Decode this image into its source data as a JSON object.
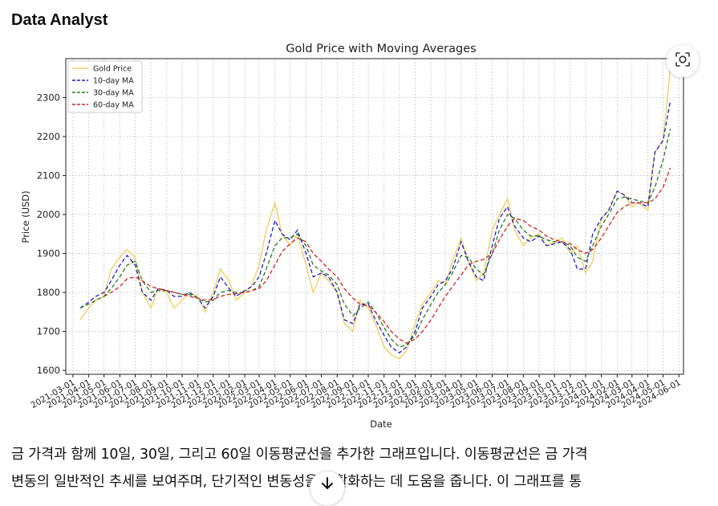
{
  "header": {
    "title": "Data Analyst"
  },
  "message": {
    "line1": "금 가격과 함께 10일, 30일, 그리고 60일 이동평균선을 추가한 그래프입니다. 이동평균선은 금 가격",
    "line2": "변동의 일반적인 추세를 보여주며, 단기적인 변동성을 평활화하는 데 도움을 줍니다. 이 그래프를 통"
  },
  "icons": {
    "lens": "image-lens-icon",
    "scroll": "arrow-down-icon"
  },
  "colors": {
    "gold": "#f0d060",
    "ma10": "#1c1cd6",
    "ma30": "#2a7a1e",
    "ma60": "#d62020"
  },
  "chart_data": {
    "type": "line",
    "title": "Gold Price with Moving Averages",
    "xlabel": "Date",
    "ylabel": "Price (USD)",
    "ylim": [
      1590,
      2400
    ],
    "yticks": [
      1600,
      1700,
      1800,
      1900,
      2000,
      2100,
      2200,
      2300
    ],
    "grid": true,
    "legend_position": "top-left",
    "x_tick_labels": [
      "2021-03-01",
      "2021-04-01",
      "2021-05-01",
      "2021-06-01",
      "2021-07-01",
      "2021-08-01",
      "2021-09-01",
      "2021-10-01",
      "2021-11-01",
      "2021-12-01",
      "2022-01-01",
      "2022-02-01",
      "2022-03-01",
      "2022-04-01",
      "2022-05-01",
      "2022-06-01",
      "2022-07-01",
      "2022-08-01",
      "2022-09-01",
      "2022-10-01",
      "2022-11-01",
      "2022-12-01",
      "2023-01-01",
      "2023-02-01",
      "2023-03-01",
      "2023-04-01",
      "2023-05-01",
      "2023-06-01",
      "2023-07-01",
      "2023-08-01",
      "2023-09-01",
      "2023-10-01",
      "2023-11-01",
      "2023-12-01",
      "2024-01-01",
      "2024-02-01",
      "2024-03-01",
      "2024-04-01",
      "2024-05-01",
      "2024-06-01"
    ],
    "x": [
      "2021-03-15",
      "2021-04-01",
      "2021-04-15",
      "2021-05-01",
      "2021-05-15",
      "2021-06-01",
      "2021-06-15",
      "2021-07-01",
      "2021-07-15",
      "2021-08-01",
      "2021-08-15",
      "2021-09-01",
      "2021-09-15",
      "2021-10-01",
      "2021-10-15",
      "2021-11-01",
      "2021-11-15",
      "2021-12-01",
      "2021-12-15",
      "2022-01-01",
      "2022-01-15",
      "2022-02-01",
      "2022-02-15",
      "2022-03-01",
      "2022-03-15",
      "2022-04-01",
      "2022-04-15",
      "2022-05-01",
      "2022-05-15",
      "2022-06-01",
      "2022-06-15",
      "2022-07-01",
      "2022-07-15",
      "2022-08-01",
      "2022-08-15",
      "2022-09-01",
      "2022-09-15",
      "2022-10-01",
      "2022-10-15",
      "2022-11-01",
      "2022-11-15",
      "2022-12-01",
      "2022-12-15",
      "2023-01-01",
      "2023-01-15",
      "2023-02-01",
      "2023-02-15",
      "2023-03-01",
      "2023-03-15",
      "2023-04-01",
      "2023-04-15",
      "2023-05-01",
      "2023-05-15",
      "2023-06-01",
      "2023-06-15",
      "2023-07-01",
      "2023-07-15",
      "2023-08-01",
      "2023-08-15",
      "2023-09-01",
      "2023-09-15",
      "2023-10-01",
      "2023-10-15",
      "2023-11-01",
      "2023-11-15",
      "2023-12-01",
      "2023-12-15",
      "2024-01-01",
      "2024-01-15",
      "2024-02-01",
      "2024-02-15",
      "2024-03-01",
      "2024-03-15",
      "2024-04-01",
      "2024-04-15",
      "2024-05-01",
      "2024-05-15"
    ],
    "series": [
      {
        "name": "Gold Price",
        "color": "#f0d060",
        "style": "solid",
        "values": [
          1730,
          1760,
          1780,
          1790,
          1860,
          1890,
          1910,
          1890,
          1800,
          1760,
          1810,
          1800,
          1760,
          1780,
          1800,
          1790,
          1750,
          1800,
          1860,
          1830,
          1780,
          1800,
          1820,
          1870,
          1960,
          2030,
          1950,
          1920,
          1950,
          1870,
          1800,
          1850,
          1830,
          1800,
          1720,
          1700,
          1780,
          1760,
          1720,
          1660,
          1640,
          1630,
          1650,
          1720,
          1770,
          1800,
          1830,
          1820,
          1880,
          1940,
          1880,
          1830,
          1850,
          1960,
          2000,
          2040,
          1960,
          1920,
          1940,
          1950,
          1920,
          1930,
          1940,
          1900,
          1920,
          1850,
          1880,
          1990,
          2010,
          2060,
          2050,
          2020,
          2030,
          2010,
          2160,
          2190,
          2370
        ]
      },
      {
        "name": "10-day MA",
        "color": "#1c1cd6",
        "style": "dashed",
        "values": [
          1760,
          1775,
          1790,
          1800,
          1830,
          1870,
          1895,
          1870,
          1800,
          1780,
          1810,
          1805,
          1790,
          1790,
          1800,
          1785,
          1760,
          1790,
          1840,
          1810,
          1790,
          1805,
          1815,
          1840,
          1900,
          1985,
          1950,
          1935,
          1960,
          1900,
          1840,
          1850,
          1840,
          1800,
          1730,
          1720,
          1770,
          1770,
          1730,
          1690,
          1660,
          1645,
          1660,
          1700,
          1760,
          1790,
          1820,
          1830,
          1860,
          1930,
          1880,
          1840,
          1830,
          1920,
          1990,
          2020,
          1970,
          1940,
          1930,
          1945,
          1920,
          1925,
          1930,
          1910,
          1860,
          1860,
          1950,
          1990,
          2010,
          2060,
          2050,
          2030,
          2030,
          2020,
          2160,
          2190,
          2290
        ]
      },
      {
        "name": "30-day MA",
        "color": "#2a7a1e",
        "style": "dashed",
        "values": [
          1760,
          1770,
          1780,
          1790,
          1810,
          1840,
          1870,
          1880,
          1830,
          1800,
          1805,
          1805,
          1800,
          1795,
          1795,
          1785,
          1775,
          1780,
          1800,
          1805,
          1800,
          1800,
          1805,
          1815,
          1860,
          1920,
          1940,
          1940,
          1950,
          1920,
          1870,
          1855,
          1845,
          1820,
          1770,
          1740,
          1760,
          1775,
          1750,
          1710,
          1680,
          1660,
          1665,
          1690,
          1730,
          1770,
          1800,
          1820,
          1850,
          1895,
          1890,
          1860,
          1845,
          1900,
          1960,
          2000,
          1990,
          1960,
          1945,
          1945,
          1935,
          1930,
          1930,
          1920,
          1890,
          1880,
          1920,
          1970,
          2000,
          2040,
          2045,
          2040,
          2035,
          2030,
          2070,
          2140,
          2220
        ]
      },
      {
        "name": "60-day MA",
        "color": "#d62020",
        "style": "dashed",
        "values": [
          null,
          null,
          null,
          1790,
          1800,
          1815,
          1835,
          1840,
          1830,
          1815,
          1810,
          1805,
          1800,
          1795,
          1790,
          1785,
          1780,
          1782,
          1790,
          1795,
          1797,
          1800,
          1805,
          1810,
          1830,
          1870,
          1905,
          1925,
          1940,
          1930,
          1900,
          1880,
          1860,
          1840,
          1810,
          1785,
          1770,
          1765,
          1750,
          1725,
          1700,
          1680,
          1670,
          1680,
          1700,
          1730,
          1760,
          1790,
          1815,
          1845,
          1870,
          1880,
          1885,
          1900,
          1935,
          1970,
          1990,
          1985,
          1970,
          1960,
          1945,
          1935,
          1930,
          1925,
          1910,
          1900,
          1910,
          1940,
          1970,
          2005,
          2020,
          2030,
          2030,
          2030,
          2040,
          2070,
          2120
        ]
      }
    ]
  }
}
